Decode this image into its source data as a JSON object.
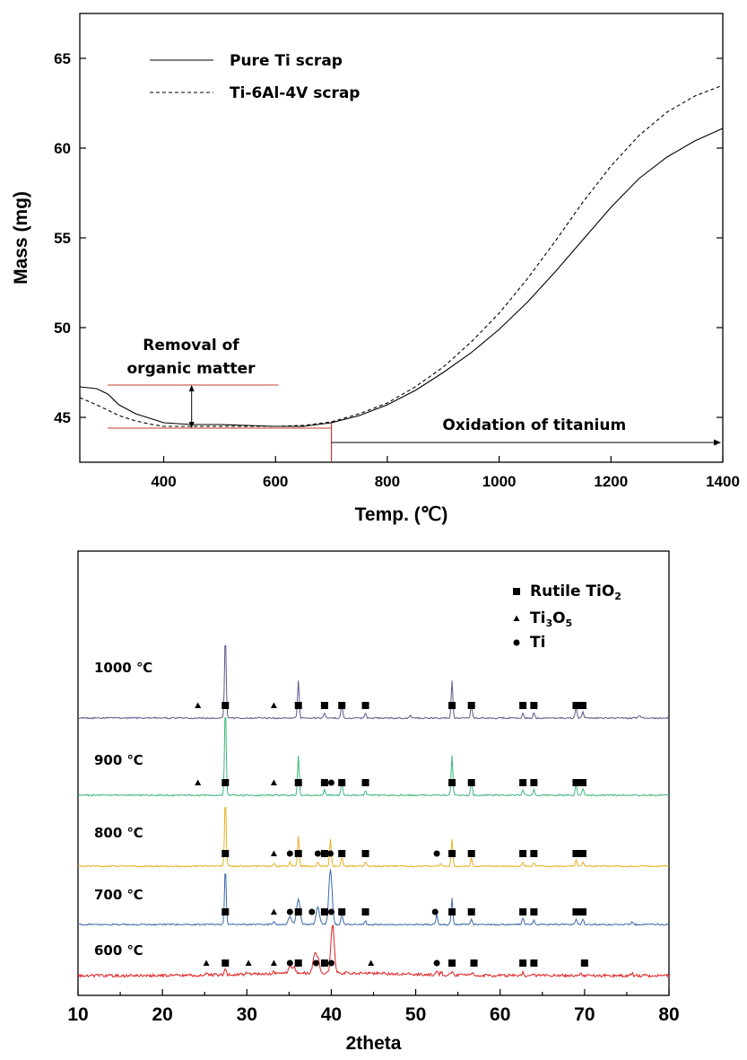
{
  "chart_data": [
    {
      "type": "line",
      "xlabel": "Temp. (℃)",
      "ylabel": "Mass (mg)",
      "xlim": [
        250,
        1400
      ],
      "ylim": [
        42.5,
        67.5
      ],
      "xticks": [
        400,
        600,
        800,
        1000,
        1200,
        1400
      ],
      "yticks": [
        45,
        50,
        55,
        60,
        65
      ],
      "legend": {
        "placement": "top-left"
      },
      "series": [
        {
          "name": "Pure Ti scrap",
          "style": "solid",
          "x": [
            250,
            280,
            300,
            320,
            350,
            380,
            400,
            450,
            500,
            550,
            600,
            650,
            700,
            750,
            800,
            850,
            900,
            950,
            1000,
            1050,
            1100,
            1150,
            1200,
            1250,
            1300,
            1350,
            1400
          ],
          "y": [
            46.7,
            46.6,
            46.3,
            45.7,
            45.2,
            44.9,
            44.7,
            44.6,
            44.6,
            44.55,
            44.5,
            44.5,
            44.7,
            45.1,
            45.7,
            46.5,
            47.5,
            48.6,
            49.9,
            51.4,
            53.1,
            54.9,
            56.7,
            58.3,
            59.5,
            60.4,
            61.1
          ]
        },
        {
          "name": "Ti-6Al-4V scrap",
          "style": "dashed",
          "x": [
            250,
            280,
            300,
            320,
            350,
            380,
            400,
            450,
            500,
            550,
            600,
            650,
            700,
            750,
            800,
            850,
            900,
            950,
            1000,
            1050,
            1100,
            1150,
            1200,
            1250,
            1300,
            1350,
            1400
          ],
          "y": [
            46.1,
            45.7,
            45.4,
            45.1,
            44.8,
            44.6,
            44.5,
            44.5,
            44.5,
            44.5,
            44.5,
            44.55,
            44.75,
            45.2,
            45.8,
            46.7,
            47.8,
            49.2,
            50.8,
            52.7,
            54.8,
            57.0,
            59.0,
            60.7,
            62.0,
            62.9,
            63.5
          ]
        }
      ],
      "annotations": {
        "removal": "Removal of\norganic matter",
        "removal_line1": "Removal of",
        "removal_line2": "organic matter",
        "oxidation": "Oxidation of titanium",
        "removal_band": [
          44.4,
          46.8
        ],
        "oxidation_start": 700
      }
    },
    {
      "type": "line",
      "xlabel": "2theta",
      "xlim": [
        10,
        80
      ],
      "xticks": [
        10,
        20,
        30,
        40,
        50,
        60,
        70,
        80
      ],
      "legend": {
        "placement": "top-right",
        "entries": [
          {
            "marker": "square",
            "label_base": "Rutile TiO",
            "label_sub": "2",
            "label_tail": ""
          },
          {
            "marker": "triangle",
            "label_base": "Ti",
            "label_sub": "3",
            "label_mid": "O",
            "label_sub2": "5"
          },
          {
            "marker": "circle",
            "label_base": "Ti"
          }
        ]
      },
      "series": [
        {
          "name": "1000 ℃",
          "color": "#5a5a8c",
          "peaks": [
            [
              27.45,
              100
            ],
            [
              36.1,
              45
            ],
            [
              39.2,
              6
            ],
            [
              41.25,
              16
            ],
            [
              44.05,
              6
            ],
            [
              49.4,
              3
            ],
            [
              54.3,
              45
            ],
            [
              56.6,
              17
            ],
            [
              62.7,
              6
            ],
            [
              64.0,
              6
            ],
            [
              69.0,
              13
            ],
            [
              69.8,
              8
            ],
            [
              76.5,
              3
            ]
          ],
          "rutile": [
            27.45,
            36.1,
            39.2,
            41.25,
            44.05,
            54.3,
            56.6,
            62.7,
            64.0,
            69.0,
            69.8
          ],
          "ti3o5": [
            24.2,
            33.2
          ],
          "ti": []
        },
        {
          "name": "900 ℃",
          "color": "#3db87a",
          "peaks": [
            [
              27.45,
              100
            ],
            [
              36.1,
              45
            ],
            [
              39.2,
              6
            ],
            [
              41.25,
              16
            ],
            [
              44.05,
              6
            ],
            [
              54.3,
              45
            ],
            [
              56.6,
              17
            ],
            [
              62.7,
              6
            ],
            [
              64.0,
              6
            ],
            [
              69.0,
              13
            ],
            [
              69.8,
              8
            ]
          ],
          "rutile": [
            27.45,
            36.1,
            39.2,
            41.25,
            44.05,
            54.3,
            56.6,
            62.7,
            64.0,
            69.0,
            69.8
          ],
          "ti3o5": [
            24.2,
            33.2
          ],
          "ti": [
            40.0
          ]
        },
        {
          "name": "800 ℃",
          "color": "#e8b020",
          "peaks": [
            [
              27.45,
              100
            ],
            [
              33.2,
              4
            ],
            [
              35.1,
              6
            ],
            [
              36.1,
              45
            ],
            [
              38.4,
              7
            ],
            [
              39.9,
              40
            ],
            [
              41.25,
              14
            ],
            [
              44.05,
              6
            ],
            [
              53.0,
              4
            ],
            [
              54.3,
              40
            ],
            [
              56.6,
              13
            ],
            [
              62.7,
              6
            ],
            [
              64.0,
              5
            ],
            [
              69.0,
              10
            ],
            [
              69.8,
              7
            ]
          ],
          "rutile": [
            27.45,
            36.1,
            39.2,
            41.25,
            44.05,
            54.3,
            56.6,
            62.7,
            64.0,
            69.0,
            69.8
          ],
          "ti3o5": [
            33.2
          ],
          "ti": [
            35.1,
            38.4,
            39.9,
            52.5
          ]
        },
        {
          "name": "700 ℃",
          "color": "#3a6aa8",
          "peaks": [
            [
              27.45,
              100
            ],
            [
              33.2,
              5
            ],
            [
              35.1,
              13
            ],
            [
              36.1,
              45
            ],
            [
              38.4,
              30
            ],
            [
              39.9,
              95
            ],
            [
              41.25,
              20
            ],
            [
              44.05,
              6
            ],
            [
              52.5,
              18
            ],
            [
              54.3,
              45
            ],
            [
              56.6,
              10
            ],
            [
              62.7,
              12
            ],
            [
              64.0,
              8
            ],
            [
              69.0,
              10
            ],
            [
              69.8,
              10
            ],
            [
              75.6,
              4
            ]
          ],
          "rutile": [
            27.45,
            36.1,
            39.2,
            41.25,
            44.05,
            54.3,
            56.6,
            62.7,
            64.0,
            69.0,
            69.8
          ],
          "ti3o5": [
            33.2
          ],
          "ti": [
            35.1,
            37.7,
            40.0,
            52.3
          ]
        },
        {
          "name": "600 ℃",
          "color": "#e02020",
          "peaks": [
            [
              25.2,
              3
            ],
            [
              27.45,
              12
            ],
            [
              30.0,
              3
            ],
            [
              33.2,
              4
            ],
            [
              35.1,
              14
            ],
            [
              35.6,
              12
            ],
            [
              38.0,
              35
            ],
            [
              38.4,
              30
            ],
            [
              40.15,
              100
            ],
            [
              44.6,
              3
            ],
            [
              52.5,
              8
            ],
            [
              53.0,
              6
            ],
            [
              54.3,
              6
            ],
            [
              56.7,
              4
            ],
            [
              62.7,
              6
            ],
            [
              64.0,
              4
            ],
            [
              69.5,
              4
            ],
            [
              75.6,
              6
            ]
          ],
          "rutile": [
            27.45,
            36.1,
            39.2,
            54.3,
            56.9,
            62.7,
            64.0,
            70.0
          ],
          "ti3o5": [
            25.2,
            30.2,
            33.2,
            44.7
          ],
          "ti": [
            35.1,
            38.2,
            40.0,
            52.5
          ]
        }
      ]
    }
  ]
}
